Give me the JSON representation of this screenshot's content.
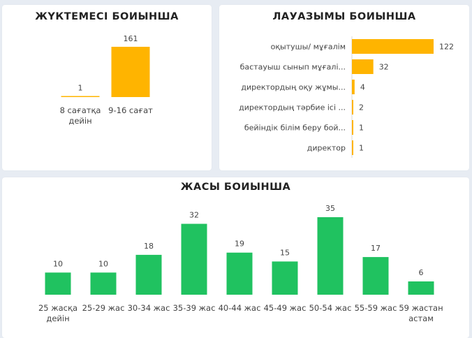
{
  "colors": {
    "orange": "#FFB400",
    "green": "#20C260",
    "axis": "#d8d8d8"
  },
  "chart_data": [
    {
      "type": "bar",
      "title": "ЖҮКТЕМЕСІ БОИЫНША",
      "categories": [
        "8 сағатқа дейін",
        "9-16 сағат"
      ],
      "category_lines": [
        [
          "8 сағатқа",
          "дейін"
        ],
        [
          "9-16 сағат"
        ]
      ],
      "values": [
        1,
        161
      ],
      "ylim": [
        0,
        161
      ]
    },
    {
      "type": "bar",
      "orientation": "horizontal",
      "title": "ЛАУАЗЫМЫ БОИЫНША",
      "categories": [
        "оқытушы/ мұғалім",
        "бастауыш сынып мұғалі...",
        "директордың оқу жұмы...",
        "директордың тәрбие ісі ...",
        "бейіндік білім беру бой...",
        "директор"
      ],
      "values": [
        122,
        32,
        4,
        2,
        1,
        1
      ],
      "xlim": [
        0,
        122
      ]
    },
    {
      "type": "bar",
      "title": "ЖАСЫ БОИЫНША",
      "categories": [
        "25 жасқа дейін",
        "25-29 жас",
        "30-34 жас",
        "35-39 жас",
        "40-44 жас",
        "45-49 жас",
        "50-54 жас",
        "55-59 жас",
        "59 жастан астам"
      ],
      "category_lines": [
        [
          "25 жасқа",
          "дейін"
        ],
        [
          "25-29 жас"
        ],
        [
          "30-34 жас"
        ],
        [
          "35-39 жас"
        ],
        [
          "40-44 жас"
        ],
        [
          "45-49 жас"
        ],
        [
          "50-54 жас"
        ],
        [
          "55-59 жас"
        ],
        [
          "59 жастан",
          "астам"
        ]
      ],
      "values": [
        10,
        10,
        18,
        32,
        19,
        15,
        35,
        17,
        6
      ],
      "ylim": [
        0,
        35
      ]
    }
  ]
}
